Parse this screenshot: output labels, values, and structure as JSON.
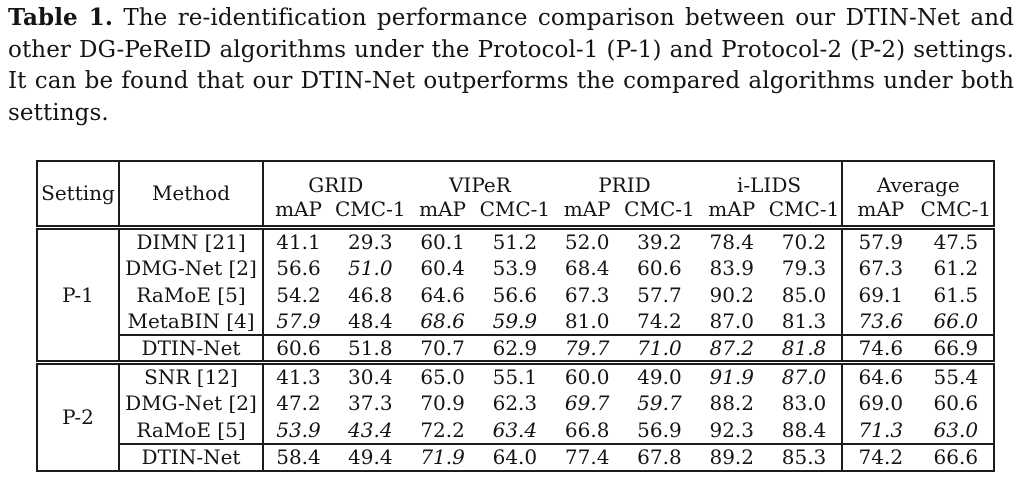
{
  "caption": {
    "label": "Table 1.",
    "text": "The re-identification performance comparison between our DTIN-Net and other DG-PeReID algorithms under the Protocol-1 (P-1) and Protocol-2 (P-2) settings. It can be found that our DTIN-Net outperforms the compared algorithms under both settings."
  },
  "table": {
    "header": {
      "setting": "Setting",
      "method": "Method",
      "groups": [
        {
          "label": "GRID"
        },
        {
          "label": "VIPeR"
        },
        {
          "label": "PRID"
        },
        {
          "label": "i-LIDS"
        },
        {
          "label": "Average"
        }
      ],
      "sub_map": "mAP",
      "sub_cmc": "CMC-1"
    },
    "sections": [
      {
        "setting": "P-1",
        "rows": [
          {
            "method": "DIMN [21]",
            "method_bold": false,
            "values": [
              "41.1",
              "29.3",
              "60.1",
              "51.2",
              "52.0",
              "39.2",
              "78.4",
              "70.2",
              "57.9",
              "47.5"
            ],
            "styles": "nnnnnnnnnn"
          },
          {
            "method": "DMG-Net [2]",
            "method_bold": false,
            "values": [
              "56.6",
              "51.0",
              "60.4",
              "53.9",
              "68.4",
              "60.6",
              "83.9",
              "79.3",
              "67.3",
              "61.2"
            ],
            "styles": "ninnnnnnnn"
          },
          {
            "method": "RaMoE [5]",
            "method_bold": false,
            "values": [
              "54.2",
              "46.8",
              "64.6",
              "56.6",
              "67.3",
              "57.7",
              "90.2",
              "85.0",
              "69.1",
              "61.5"
            ],
            "styles": "nnnnnnbbnn"
          },
          {
            "method": "MetaBIN [4]",
            "method_bold": false,
            "values": [
              "57.9",
              "48.4",
              "68.6",
              "59.9",
              "81.0",
              "74.2",
              "87.0",
              "81.3",
              "73.6",
              "66.0"
            ],
            "styles": "iniibbnnii"
          },
          {
            "method": "DTIN-Net",
            "method_bold": true,
            "values": [
              "60.6",
              "51.8",
              "70.7",
              "62.9",
              "79.7",
              "71.0",
              "87.2",
              "81.8",
              "74.6",
              "66.9"
            ],
            "styles": "bbbbiiiibb"
          }
        ]
      },
      {
        "setting": "P-2",
        "rows": [
          {
            "method": "SNR [12]",
            "method_bold": false,
            "values": [
              "41.3",
              "30.4",
              "65.0",
              "55.1",
              "60.0",
              "49.0",
              "91.9",
              "87.0",
              "64.6",
              "55.4"
            ],
            "styles": "nnnnnniinn"
          },
          {
            "method": "DMG-Net [2]",
            "method_bold": false,
            "values": [
              "47.2",
              "37.3",
              "70.9",
              "62.3",
              "69.7",
              "59.7",
              "88.2",
              "83.0",
              "69.0",
              "60.6"
            ],
            "styles": "nnnniinnnn"
          },
          {
            "method": "RaMoE [5]",
            "method_bold": false,
            "values": [
              "53.9",
              "43.4",
              "72.2",
              "63.4",
              "66.8",
              "56.9",
              "92.3",
              "88.4",
              "71.3",
              "63.0"
            ],
            "styles": "iibinnbbii"
          },
          {
            "method": "DTIN-Net",
            "method_bold": true,
            "values": [
              "58.4",
              "49.4",
              "71.9",
              "64.0",
              "77.4",
              "67.8",
              "89.2",
              "85.3",
              "74.2",
              "66.6"
            ],
            "styles": "bbibbbnnbb"
          }
        ]
      }
    ]
  }
}
